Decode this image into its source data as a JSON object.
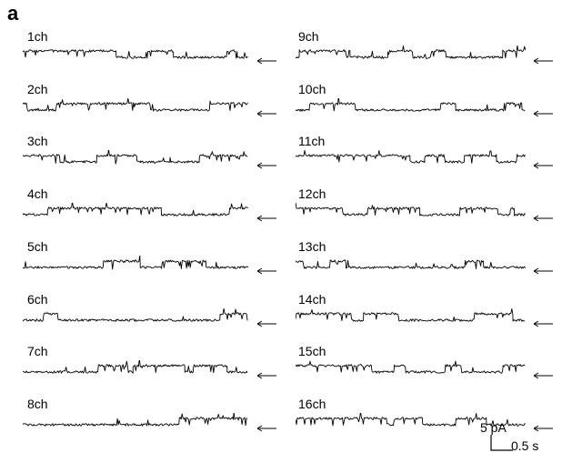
{
  "panel_letter": "a",
  "channels": [
    {
      "label": "1ch"
    },
    {
      "label": "2ch"
    },
    {
      "label": "3ch"
    },
    {
      "label": "4ch"
    },
    {
      "label": "5ch"
    },
    {
      "label": "6ch"
    },
    {
      "label": "7ch"
    },
    {
      "label": "8ch"
    },
    {
      "label": "9ch"
    },
    {
      "label": "10ch"
    },
    {
      "label": "11ch"
    },
    {
      "label": "12ch"
    },
    {
      "label": "13ch"
    },
    {
      "label": "14ch"
    },
    {
      "label": "15ch"
    },
    {
      "label": "16ch"
    }
  ],
  "scale_bar": {
    "current_label": "5 pA",
    "time_label": "0.5 s"
  },
  "icons": {
    "baseline_marker": "left-arrow-icon"
  }
}
